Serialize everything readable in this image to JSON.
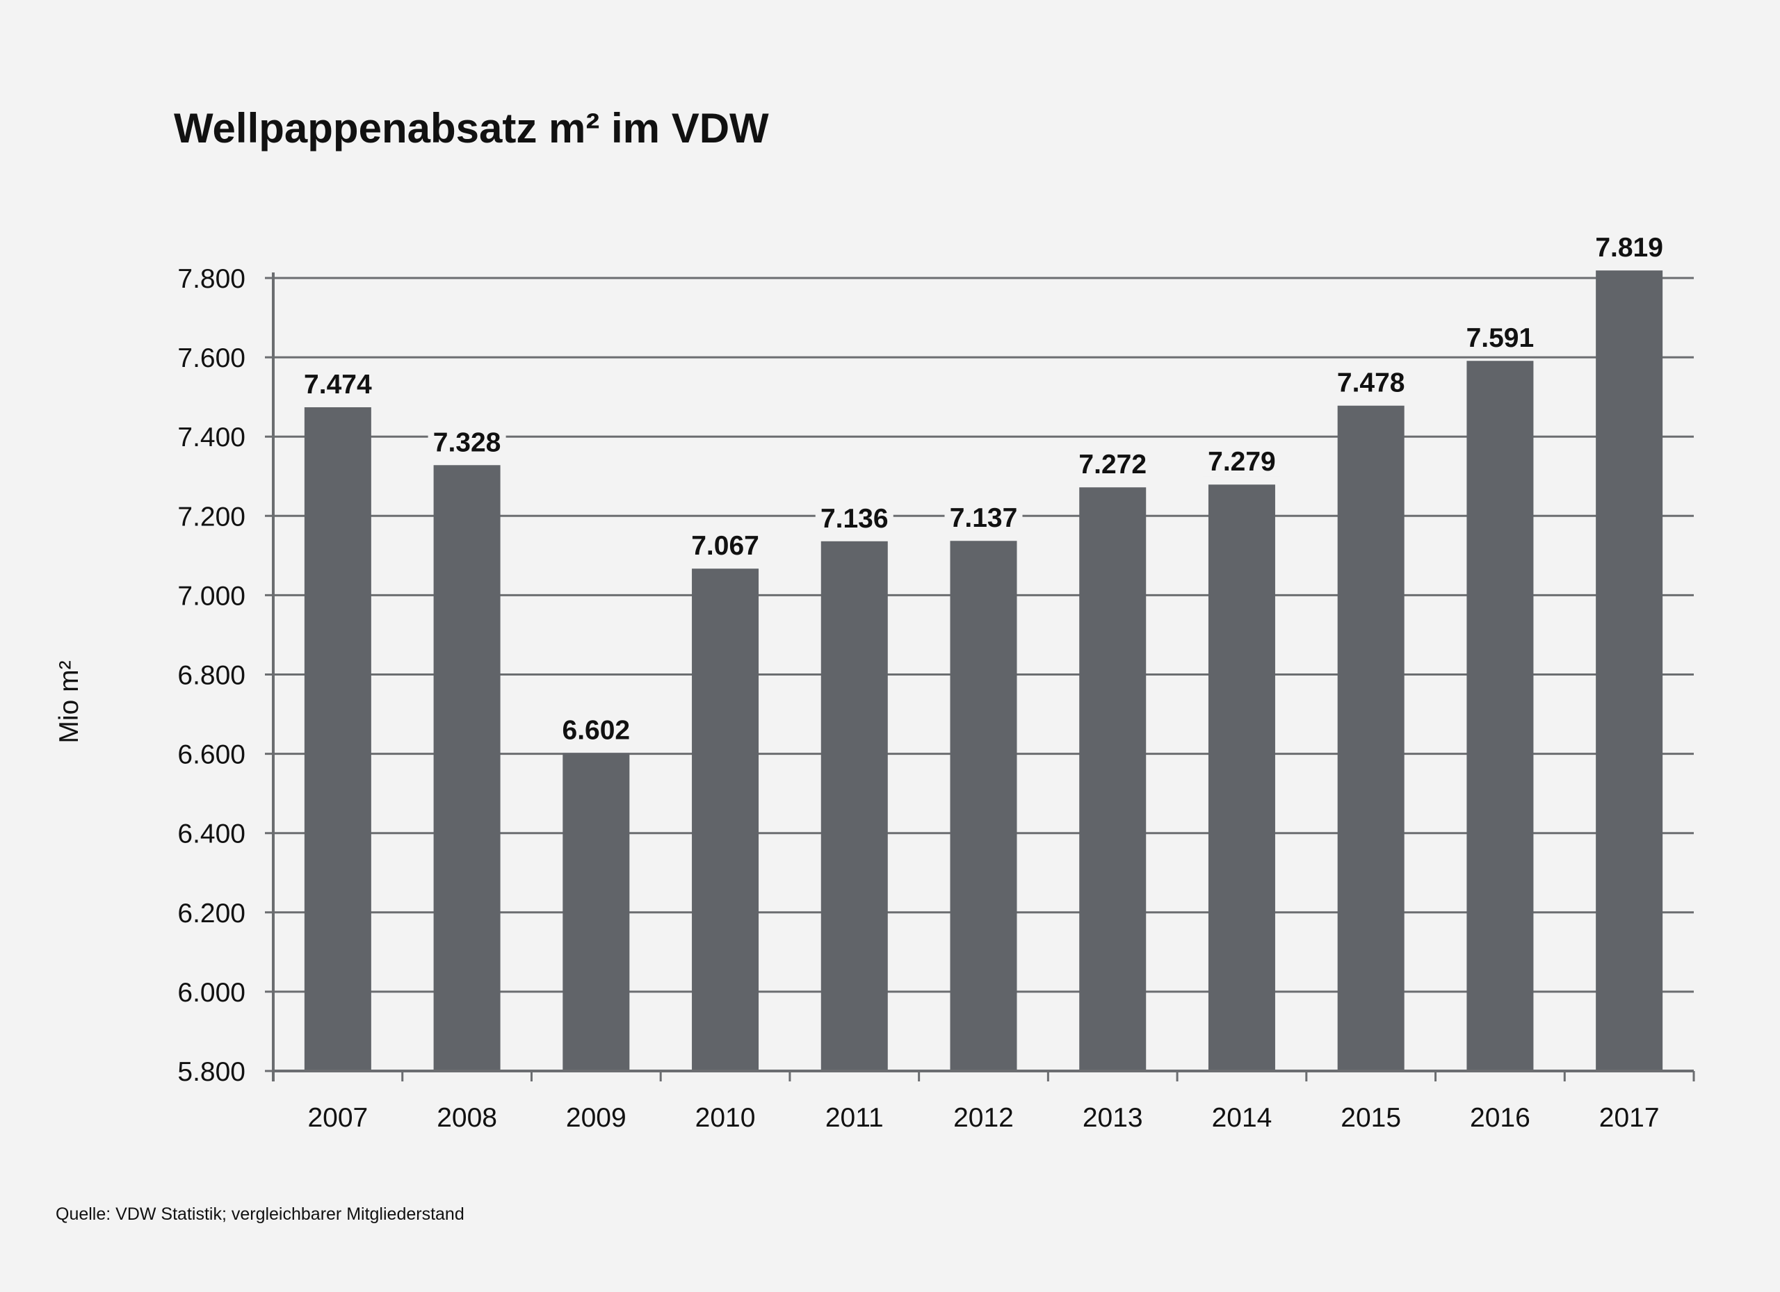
{
  "chart_data": {
    "type": "bar",
    "title": "Wellpappenabsatz m² im VDW",
    "xlabel": "",
    "ylabel": "Mio m²",
    "categories": [
      "2007",
      "2008",
      "2009",
      "2010",
      "2011",
      "2012",
      "2013",
      "2014",
      "2015",
      "2016",
      "2017"
    ],
    "values": [
      7474,
      7328,
      6602,
      7067,
      7136,
      7137,
      7272,
      7279,
      7478,
      7591,
      7819
    ],
    "data_labels": [
      "7.474",
      "7.328",
      "6.602",
      "7.067",
      "7.136",
      "7.137",
      "7.272",
      "7.279",
      "7.478",
      "7.591",
      "7.819"
    ],
    "ylim": [
      5800,
      7800
    ],
    "yticks": [
      5800,
      6000,
      6200,
      6400,
      6600,
      6800,
      7000,
      7200,
      7400,
      7600,
      7800
    ],
    "ytick_labels": [
      "5.800",
      "6.000",
      "6.200",
      "6.400",
      "6.600",
      "6.800",
      "7.000",
      "7.200",
      "7.400",
      "7.600",
      "7.800"
    ],
    "grid": true,
    "legend": "none",
    "colors": {
      "bar": "#616469",
      "grid": "#6b6d70",
      "background": "#f3f3f3"
    },
    "source": "Quelle: VDW Statistik; vergleichbarer Mitgliederstand"
  }
}
